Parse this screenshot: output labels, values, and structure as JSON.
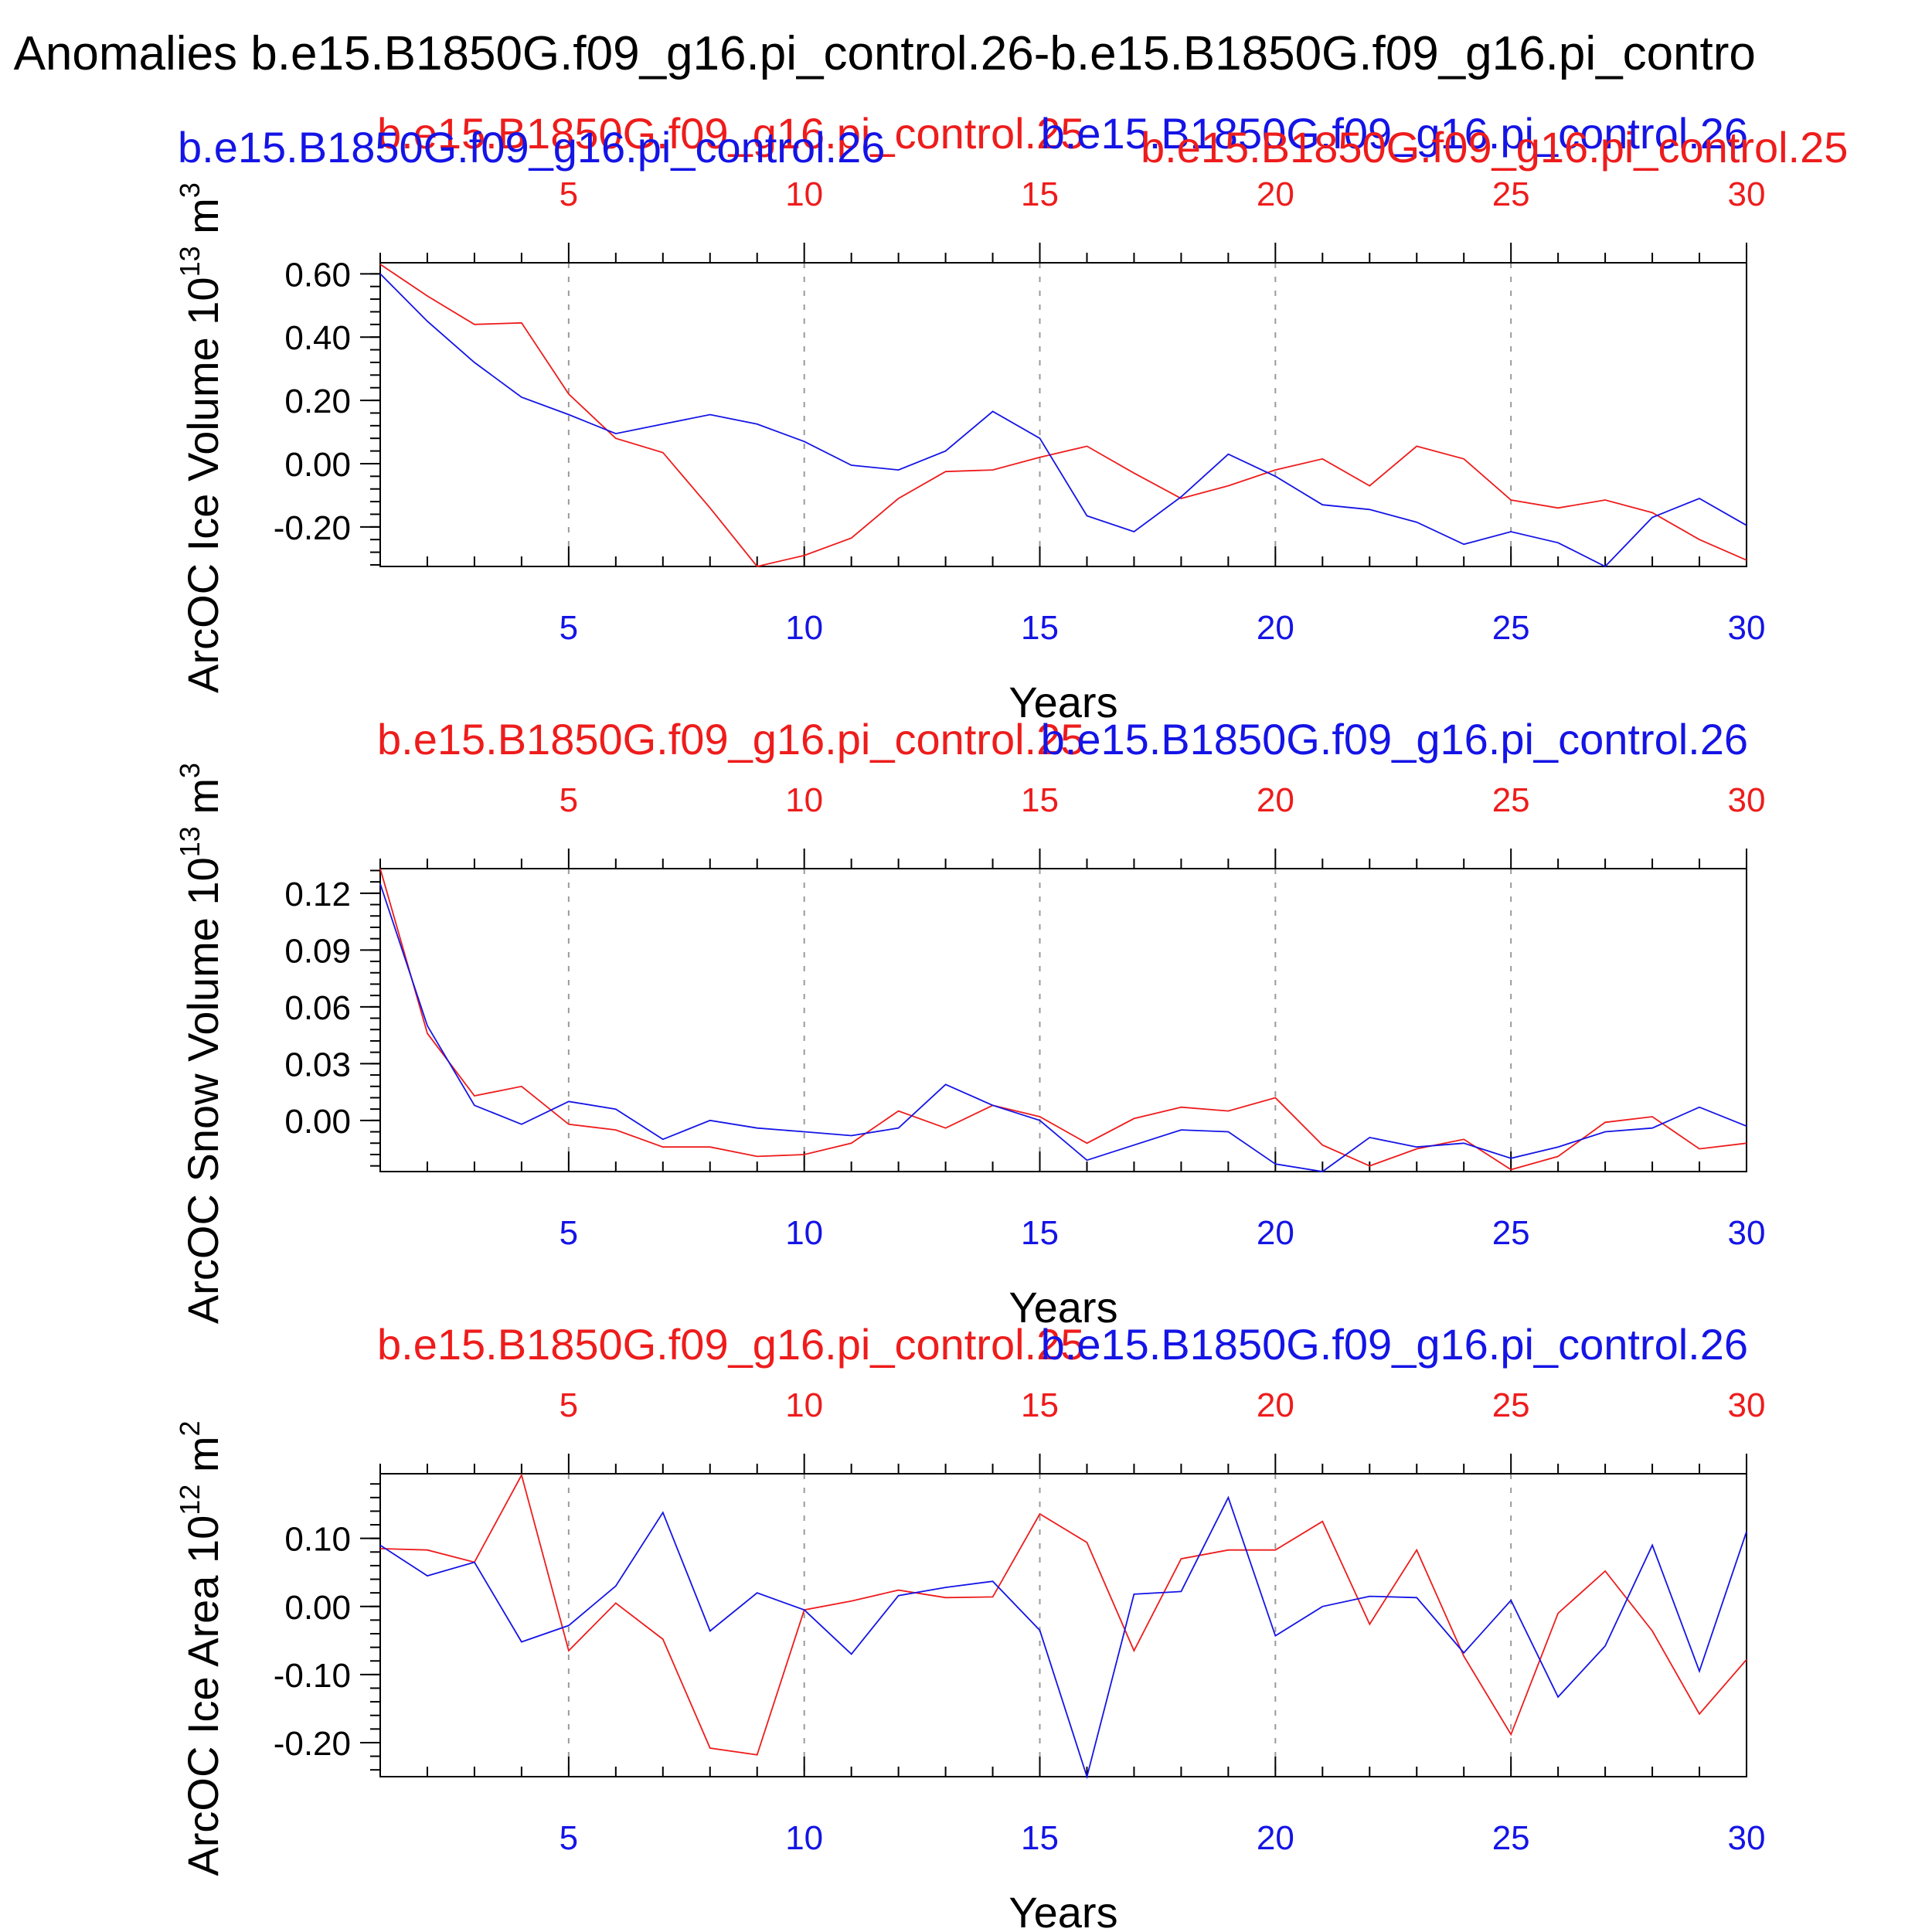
{
  "page": {
    "title": "l Anomalies b.e15.B1850G.f09_g16.pi_control.26-b.e15.B1850G.f09_g16.pi_contro"
  },
  "colors": {
    "series_a": "#ee1c1c",
    "series_b": "#1414e6",
    "axis": "#000000",
    "grid": "#9a9a9a"
  },
  "chart_data": [
    {
      "type": "line",
      "panel": "ice-volume",
      "ylabel": "ArcOC Ice Volume 10",
      "yexp": "13",
      "yunit": "m",
      "ysup": "3",
      "xlabel": "Years",
      "top_label_red": "b.e15.B1850G.f09_g16.pi_control.25",
      "top_label_blue": "b.e15.B1850G.f09_g16.pi_control.26",
      "extra_label_blue": "b.e15.B1850G.f09_g16.pi_control.26",
      "extra_label_red": "b.e15.B1850G.f09_g16.pi_control.25",
      "xlim": [
        1,
        30
      ],
      "ylim": [
        -0.325,
        0.635
      ],
      "yticks": [
        0.6,
        0.4,
        0.2,
        0.0,
        -0.2
      ],
      "ytick_labels": [
        "0.60",
        "0.40",
        "0.20",
        "0.00",
        "-0.20"
      ],
      "yminor_step": 0.04,
      "xticks": [
        5,
        10,
        15,
        20,
        25,
        30
      ],
      "xtick_labels": [
        "5",
        "10",
        "15",
        "20",
        "25",
        "30"
      ],
      "grid": "vertical-dashed",
      "series": [
        {
          "color": "red",
          "x": [
            1,
            2,
            3,
            4,
            5,
            6,
            7,
            8,
            9,
            10,
            11,
            12,
            13,
            14,
            15,
            16,
            17,
            18,
            19,
            20,
            21,
            22,
            23,
            24,
            25,
            26,
            27,
            28,
            29,
            30
          ],
          "values": [
            0.63,
            0.53,
            0.44,
            0.445,
            0.22,
            0.08,
            0.035,
            -0.14,
            -0.325,
            -0.29,
            -0.235,
            -0.11,
            -0.025,
            -0.02,
            0.02,
            0.055,
            -0.03,
            -0.11,
            -0.07,
            -0.02,
            0.015,
            -0.07,
            0.055,
            0.015,
            -0.115,
            -0.14,
            -0.115,
            -0.155,
            -0.24,
            -0.305
          ]
        },
        {
          "color": "blue",
          "x": [
            1,
            2,
            3,
            4,
            5,
            6,
            7,
            8,
            9,
            10,
            11,
            12,
            13,
            14,
            15,
            16,
            17,
            18,
            19,
            20,
            21,
            22,
            23,
            24,
            25,
            26,
            27,
            28,
            29,
            30
          ],
          "values": [
            0.6,
            0.45,
            0.32,
            0.21,
            0.155,
            0.095,
            0.125,
            0.155,
            0.125,
            0.07,
            -0.005,
            -0.02,
            0.04,
            0.165,
            0.08,
            -0.165,
            -0.215,
            -0.105,
            0.03,
            -0.04,
            -0.13,
            -0.145,
            -0.185,
            -0.255,
            -0.215,
            -0.25,
            -0.325,
            -0.17,
            -0.11,
            -0.195
          ]
        }
      ]
    },
    {
      "type": "line",
      "panel": "snow-volume",
      "ylabel": "ArcOC Snow Volume 10",
      "yexp": "13",
      "yunit": "m",
      "ysup": "3",
      "xlabel": "Years",
      "top_label_red": "b.e15.B1850G.f09_g16.pi_control.25",
      "top_label_blue": "b.e15.B1850G.f09_g16.pi_control.26",
      "xlim": [
        1,
        30
      ],
      "ylim": [
        -0.027,
        0.133
      ],
      "yticks": [
        0.12,
        0.09,
        0.06,
        0.03,
        0.0
      ],
      "ytick_labels": [
        "0.12",
        "0.09",
        "0.06",
        "0.03",
        "0.00"
      ],
      "yminor_step": 0.006,
      "xticks": [
        5,
        10,
        15,
        20,
        25,
        30
      ],
      "xtick_labels": [
        "5",
        "10",
        "15",
        "20",
        "25",
        "30"
      ],
      "grid": "vertical-dashed",
      "series": [
        {
          "color": "red",
          "x": [
            1,
            2,
            3,
            4,
            5,
            6,
            7,
            8,
            9,
            10,
            11,
            12,
            13,
            14,
            15,
            16,
            17,
            18,
            19,
            20,
            21,
            22,
            23,
            24,
            25,
            26,
            27,
            28,
            29,
            30
          ],
          "values": [
            0.133,
            0.046,
            0.013,
            0.018,
            -0.002,
            -0.005,
            -0.014,
            -0.014,
            -0.019,
            -0.018,
            -0.012,
            0.005,
            -0.004,
            0.008,
            0.002,
            -0.012,
            0.001,
            0.007,
            0.005,
            0.012,
            -0.013,
            -0.024,
            -0.015,
            -0.01,
            -0.026,
            -0.019,
            -0.001,
            0.002,
            -0.015,
            -0.012
          ]
        },
        {
          "color": "blue",
          "x": [
            1,
            2,
            3,
            4,
            5,
            6,
            7,
            8,
            9,
            10,
            11,
            12,
            13,
            14,
            15,
            16,
            17,
            18,
            19,
            20,
            21,
            22,
            23,
            24,
            25,
            26,
            27,
            28,
            29,
            30
          ],
          "values": [
            0.125,
            0.05,
            0.008,
            -0.002,
            0.01,
            0.006,
            -0.01,
            0.0,
            -0.004,
            -0.006,
            -0.008,
            -0.004,
            0.019,
            0.008,
            0.0,
            -0.021,
            -0.013,
            -0.005,
            -0.006,
            -0.023,
            -0.027,
            -0.009,
            -0.014,
            -0.012,
            -0.02,
            -0.014,
            -0.006,
            -0.004,
            0.007,
            -0.003
          ]
        }
      ]
    },
    {
      "type": "line",
      "panel": "ice-area",
      "ylabel": "ArcOC Ice Area 10",
      "yexp": "12",
      "yunit": "m",
      "ysup": "2",
      "xlabel": "Years",
      "top_label_red": "b.e15.B1850G.f09_g16.pi_control.25",
      "top_label_blue": "b.e15.B1850G.f09_g16.pi_control.26",
      "xlim": [
        1,
        30
      ],
      "ylim": [
        -0.25,
        0.195
      ],
      "yticks": [
        0.1,
        0.0,
        -0.1,
        -0.2
      ],
      "ytick_labels": [
        "0.10",
        "0.00",
        "-0.10",
        "-0.20"
      ],
      "yminor_step": 0.02,
      "xticks": [
        5,
        10,
        15,
        20,
        25,
        30
      ],
      "xtick_labels": [
        "5",
        "10",
        "15",
        "20",
        "25",
        "30"
      ],
      "grid": "vertical-dashed",
      "series": [
        {
          "color": "red",
          "x": [
            1,
            2,
            3,
            4,
            5,
            6,
            7,
            8,
            9,
            10,
            11,
            12,
            13,
            14,
            15,
            16,
            17,
            18,
            19,
            20,
            21,
            22,
            23,
            24,
            25,
            26,
            27,
            28,
            29,
            30
          ],
          "values": [
            0.085,
            0.083,
            0.065,
            0.193,
            -0.065,
            0.005,
            -0.048,
            -0.208,
            -0.218,
            -0.005,
            0.008,
            0.024,
            0.013,
            0.014,
            0.136,
            0.094,
            -0.065,
            0.07,
            0.083,
            0.083,
            0.125,
            -0.026,
            0.083,
            -0.073,
            -0.188,
            -0.01,
            0.052,
            -0.036,
            -0.158,
            -0.078
          ]
        },
        {
          "color": "blue",
          "x": [
            1,
            2,
            3,
            4,
            5,
            6,
            7,
            8,
            9,
            10,
            11,
            12,
            13,
            14,
            15,
            16,
            17,
            18,
            19,
            20,
            21,
            22,
            23,
            24,
            25,
            26,
            27,
            28,
            29,
            30
          ],
          "values": [
            0.09,
            0.045,
            0.065,
            -0.052,
            -0.028,
            0.03,
            0.138,
            -0.036,
            0.02,
            -0.005,
            -0.07,
            0.016,
            0.028,
            0.037,
            -0.035,
            -0.25,
            0.018,
            0.022,
            0.16,
            -0.043,
            0.0,
            0.015,
            0.013,
            -0.068,
            0.009,
            -0.133,
            -0.058,
            0.09,
            -0.095,
            0.11
          ]
        }
      ]
    }
  ]
}
